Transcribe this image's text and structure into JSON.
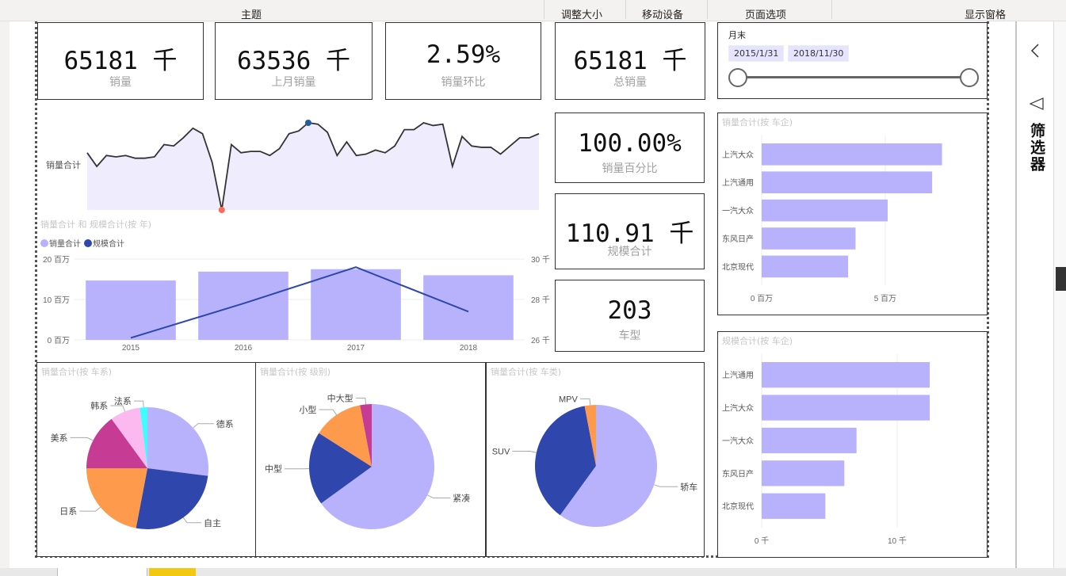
{
  "ribbon": {
    "items": [
      {
        "label": "主题"
      },
      {
        "label": "调整大小"
      },
      {
        "label": "移动设备"
      },
      {
        "label": "页面选项"
      },
      {
        "label": "显示窗格"
      }
    ]
  },
  "kpis": [
    {
      "value": "65181 千",
      "label": "销量"
    },
    {
      "value": "63536 千",
      "label": "上月销量"
    },
    {
      "value": "2.59%",
      "label": "销量环比"
    },
    {
      "value": "65181 千",
      "label": "总销量"
    },
    {
      "value": "100.00%",
      "label": "销量百分比"
    },
    {
      "value": "110.91 千",
      "label": "规模合计"
    },
    {
      "value": "203",
      "label": "车型"
    }
  ],
  "slicer": {
    "title": "月末",
    "start": "2015/1/31",
    "end": "2018/11/30",
    "range_fraction": [
      0,
      1
    ]
  },
  "filters_pane": {
    "title": "筛选器",
    "collapse_icon": "chevron-left",
    "filter_icon": "funnel"
  },
  "colors": {
    "primary": "#b8b2fc",
    "dark_blue": "#2f47ac",
    "orange": "#fe9a4b",
    "magenta": "#c63c94",
    "pink": "#fbb9ef",
    "cyan": "#3ffdfd",
    "area_fill": "#efedfd",
    "max_marker": "#1f5fa0",
    "min_marker": "#fd6a5b"
  },
  "chart_data": [
    {
      "type": "area",
      "title": "",
      "ylabel": "销量合计",
      "series": [
        {
          "name": "销量合计",
          "values": [
            62,
            52,
            60,
            59,
            60,
            58,
            58,
            59,
            68,
            67,
            73,
            80,
            76,
            55,
            20,
            68,
            62,
            63,
            63,
            60,
            65,
            76,
            78,
            84,
            83,
            77,
            60,
            70,
            60,
            61,
            64,
            62,
            67,
            79,
            79,
            84,
            82,
            83,
            52,
            74,
            67,
            66,
            66,
            61,
            67,
            73,
            73,
            76
          ]
        }
      ],
      "markers": {
        "max_index": 23,
        "min_index": 14
      }
    },
    {
      "type": "bar",
      "title": "销量合计 和 规模合计(按 年)",
      "categories": [
        "2015",
        "2016",
        "2017",
        "2018"
      ],
      "legend": [
        "销量合计",
        "规模合计"
      ],
      "series": [
        {
          "name": "销量合计",
          "values": [
            14.7,
            16.9,
            17.5,
            16.0
          ],
          "unit": "百万",
          "axis": "left"
        },
        {
          "name": "规模合计",
          "values": [
            26.1,
            27.8,
            29.6,
            27.4
          ],
          "unit": "千",
          "axis": "right",
          "type": "line"
        }
      ],
      "y_left": {
        "ticks": [
          "0 百万",
          "10 百万",
          "20 百万"
        ],
        "range": [
          0,
          20
        ]
      },
      "y_right": {
        "ticks": [
          "26 千",
          "28 千",
          "30 千"
        ],
        "range": [
          26,
          30
        ]
      }
    },
    {
      "type": "bar",
      "orientation": "horizontal",
      "title": "销量合计(按 车企)",
      "categories": [
        "上汽大众",
        "上汽通用",
        "一汽大众",
        "东风日产",
        "北京现代"
      ],
      "values": [
        7.3,
        6.9,
        5.1,
        3.8,
        3.5
      ],
      "xticks": [
        "0 百万",
        "5 百万"
      ],
      "xlim": [
        0,
        8.5
      ]
    },
    {
      "type": "bar",
      "orientation": "horizontal",
      "title": "规模合计(按 车企)",
      "categories": [
        "上汽通用",
        "上汽大众",
        "一汽大众",
        "东风日产",
        "北京现代"
      ],
      "values": [
        12.4,
        12.4,
        7.0,
        6.1,
        4.7
      ],
      "xticks": [
        "0 千",
        "10 千"
      ],
      "xlim": [
        0,
        15.5
      ]
    },
    {
      "type": "pie",
      "title": "销量合计(按 车系)",
      "labels": [
        "德系",
        "自主",
        "日系",
        "美系",
        "韩系",
        "法系"
      ],
      "values": [
        27,
        26,
        22,
        15,
        8,
        2
      ],
      "colors": [
        "#b8b2fc",
        "#2f47ac",
        "#fe9a4b",
        "#c63c94",
        "#fbb9ef",
        "#3ffdfd"
      ]
    },
    {
      "type": "pie",
      "title": "销量合计(按 级别)",
      "labels": [
        "紧凑",
        "中型",
        "小型",
        "中大型"
      ],
      "values": [
        65,
        19,
        13,
        3
      ],
      "colors": [
        "#b8b2fc",
        "#2f47ac",
        "#fe9a4b",
        "#c63c94"
      ]
    },
    {
      "type": "pie",
      "title": "销量合计(按 车类)",
      "labels": [
        "轿车",
        "SUV",
        "MPV"
      ],
      "values": [
        60,
        37,
        3
      ],
      "colors": [
        "#b8b2fc",
        "#2f47ac",
        "#fe9a4b"
      ]
    }
  ]
}
